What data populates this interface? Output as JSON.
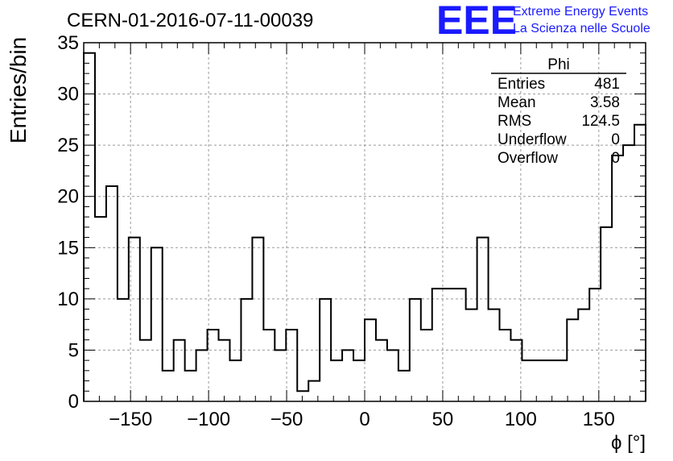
{
  "header": {
    "title": "CERN-01-2016-07-11-00039",
    "logo_text": "EEE",
    "logo_line1": "Extreme Energy Events",
    "logo_line2": "La Scienza nelle Scuole",
    "logo_color": "#1a1aff"
  },
  "stats": {
    "name": "Phi",
    "rows": [
      {
        "label": "Entries",
        "value": "481"
      },
      {
        "label": "Mean",
        "value": "3.58"
      },
      {
        "label": "RMS",
        "value": "124.5"
      },
      {
        "label": "Underflow",
        "value": "0"
      },
      {
        "label": "Overflow",
        "value": "0"
      }
    ]
  },
  "chart_data": {
    "type": "bar",
    "subtype": "step-histogram",
    "title": "CERN-01-2016-07-11-00039",
    "xlabel": "ϕ [°]",
    "ylabel": "Entries/bin",
    "xlim": [
      -180,
      180
    ],
    "ylim": [
      0,
      35
    ],
    "bin_width": 7.2,
    "grid": true,
    "x_ticks": [
      -150,
      -100,
      -50,
      0,
      50,
      100,
      150
    ],
    "x_tick_labels": [
      "−150",
      "−100",
      "−50",
      "0",
      "50",
      "100",
      "150"
    ],
    "y_ticks": [
      0,
      5,
      10,
      15,
      20,
      25,
      30,
      35
    ],
    "y_tick_labels": [
      "0",
      "5",
      "10",
      "15",
      "20",
      "25",
      "30",
      "35"
    ],
    "values": [
      34,
      18,
      21,
      10,
      16,
      6,
      15,
      3,
      6,
      3,
      5,
      7,
      6,
      4,
      10,
      16,
      7,
      5,
      7,
      1,
      2,
      10,
      4,
      5,
      4,
      8,
      6,
      5,
      3,
      10,
      7,
      11,
      11,
      11,
      9,
      16,
      9,
      7,
      6,
      4,
      4,
      4,
      4,
      8,
      9,
      11,
      17,
      24,
      25,
      27
    ]
  }
}
